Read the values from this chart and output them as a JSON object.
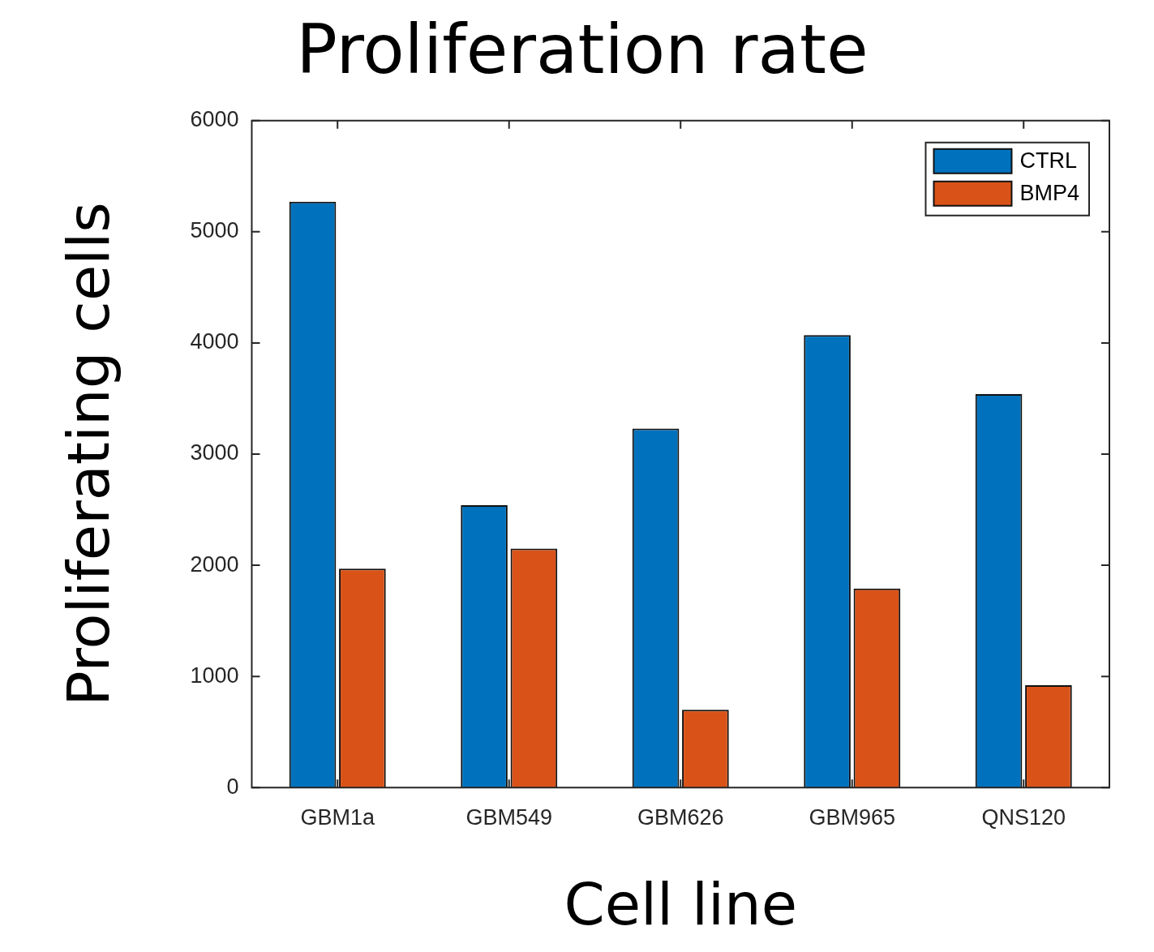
{
  "chart_data": {
    "type": "bar",
    "title": "Proliferation rate",
    "xlabel": "Cell line",
    "ylabel": "Proliferating cells",
    "categories": [
      "GBM1a",
      "GBM549",
      "GBM626",
      "GBM965",
      "QNS120"
    ],
    "series": [
      {
        "name": "CTRL",
        "color": "#0072bd",
        "values": [
          5270,
          2540,
          3230,
          4070,
          3540
        ]
      },
      {
        "name": "BMP4",
        "color": "#d95319",
        "values": [
          1970,
          2150,
          700,
          1790,
          920
        ]
      }
    ],
    "ylim": [
      0,
      6000
    ],
    "yticks": [
      0,
      1000,
      2000,
      3000,
      4000,
      5000,
      6000
    ],
    "grid": false,
    "legend": "top right"
  }
}
